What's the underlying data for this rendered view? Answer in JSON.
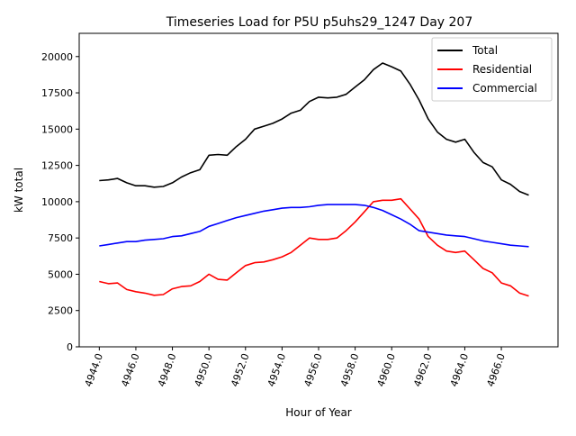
{
  "chart_data": {
    "type": "line",
    "title": "Timeseries Load for P5U p5uhs29_1247  Day 207",
    "xlabel": "Hour of Year",
    "ylabel": "kW total",
    "xlim": [
      4942.9,
      4969.1
    ],
    "ylim": [
      0,
      21600
    ],
    "x_ticks": [
      4944,
      4946,
      4948,
      4950,
      4952,
      4954,
      4956,
      4958,
      4960,
      4962,
      4964,
      4966
    ],
    "x_tick_labels": [
      "4944.0",
      "4946.0",
      "4948.0",
      "4950.0",
      "4952.0",
      "4954.0",
      "4956.0",
      "4958.0",
      "4960.0",
      "4962.0",
      "4964.0",
      "4966.0"
    ],
    "y_ticks": [
      0,
      2500,
      5000,
      7500,
      10000,
      12500,
      15000,
      17500,
      20000
    ],
    "y_tick_labels": [
      "0",
      "2500",
      "5000",
      "7500",
      "10000",
      "12500",
      "15000",
      "17500",
      "20000"
    ],
    "legend_position": "top-right",
    "series": [
      {
        "name": "Total",
        "color": "#000000",
        "x": [
          4944.0,
          4944.5,
          4945.0,
          4945.5,
          4946.0,
          4946.5,
          4947.0,
          4947.5,
          4948.0,
          4948.5,
          4949.0,
          4949.5,
          4950.0,
          4950.5,
          4951.0,
          4951.5,
          4952.0,
          4952.5,
          4953.0,
          4953.5,
          4954.0,
          4954.5,
          4955.0,
          4955.5,
          4956.0,
          4956.5,
          4957.0,
          4957.5,
          4958.0,
          4958.5,
          4959.0,
          4959.5,
          4960.0,
          4960.5,
          4961.0,
          4961.5,
          4962.0,
          4962.5,
          4963.0,
          4963.5,
          4964.0,
          4964.5,
          4965.0,
          4965.5,
          4966.0,
          4966.5,
          4967.0,
          4967.5
        ],
        "values": [
          11450,
          11500,
          11600,
          11300,
          11100,
          11100,
          11000,
          11050,
          11300,
          11700,
          12000,
          12200,
          13200,
          13250,
          13200,
          13800,
          14300,
          15000,
          15200,
          15400,
          15700,
          16100,
          16300,
          16900,
          17200,
          17150,
          17200,
          17400,
          17900,
          18400,
          19100,
          19550,
          19300,
          19000,
          18100,
          17000,
          15700,
          14800,
          14300,
          14100,
          14300,
          13400,
          12700,
          12400,
          11500,
          11200,
          10700,
          10450
        ]
      },
      {
        "name": "Residential",
        "color": "#ff0000",
        "x": [
          4944.0,
          4944.5,
          4945.0,
          4945.5,
          4946.0,
          4946.5,
          4947.0,
          4947.5,
          4948.0,
          4948.5,
          4949.0,
          4949.5,
          4950.0,
          4950.5,
          4951.0,
          4951.5,
          4952.0,
          4952.5,
          4953.0,
          4953.5,
          4954.0,
          4954.5,
          4955.0,
          4955.5,
          4956.0,
          4956.5,
          4957.0,
          4957.5,
          4958.0,
          4958.5,
          4959.0,
          4959.5,
          4960.0,
          4960.5,
          4961.0,
          4961.5,
          4962.0,
          4962.5,
          4963.0,
          4963.5,
          4964.0,
          4964.5,
          4965.0,
          4965.5,
          4966.0,
          4966.5,
          4967.0,
          4967.5
        ],
        "values": [
          4500,
          4350,
          4400,
          3950,
          3800,
          3700,
          3550,
          3600,
          4000,
          4150,
          4200,
          4500,
          5000,
          4650,
          4600,
          5100,
          5600,
          5800,
          5850,
          6000,
          6200,
          6500,
          7000,
          7500,
          7400,
          7400,
          7500,
          8000,
          8600,
          9300,
          10000,
          10100,
          10100,
          10200,
          9500,
          8800,
          7600,
          7000,
          6600,
          6500,
          6600,
          6000,
          5400,
          5100,
          4400,
          4200,
          3700,
          3500
        ]
      },
      {
        "name": "Commercial",
        "color": "#0000ff",
        "x": [
          4944.0,
          4944.5,
          4945.0,
          4945.5,
          4946.0,
          4946.5,
          4947.0,
          4947.5,
          4948.0,
          4948.5,
          4949.0,
          4949.5,
          4950.0,
          4950.5,
          4951.0,
          4951.5,
          4952.0,
          4952.5,
          4953.0,
          4953.5,
          4954.0,
          4954.5,
          4955.0,
          4955.5,
          4956.0,
          4956.5,
          4957.0,
          4957.5,
          4958.0,
          4958.5,
          4959.0,
          4959.5,
          4960.0,
          4960.5,
          4961.0,
          4961.5,
          4962.0,
          4962.5,
          4963.0,
          4963.5,
          4964.0,
          4964.5,
          4965.0,
          4965.5,
          4966.0,
          4966.5,
          4967.0,
          4967.5
        ],
        "values": [
          6950,
          7050,
          7150,
          7250,
          7250,
          7350,
          7400,
          7450,
          7600,
          7650,
          7800,
          7950,
          8300,
          8500,
          8700,
          8900,
          9050,
          9200,
          9350,
          9450,
          9550,
          9600,
          9600,
          9650,
          9750,
          9800,
          9800,
          9800,
          9800,
          9750,
          9600,
          9400,
          9100,
          8800,
          8450,
          8000,
          7900,
          7800,
          7700,
          7650,
          7600,
          7450,
          7300,
          7200,
          7100,
          7000,
          6950,
          6900
        ]
      }
    ]
  }
}
